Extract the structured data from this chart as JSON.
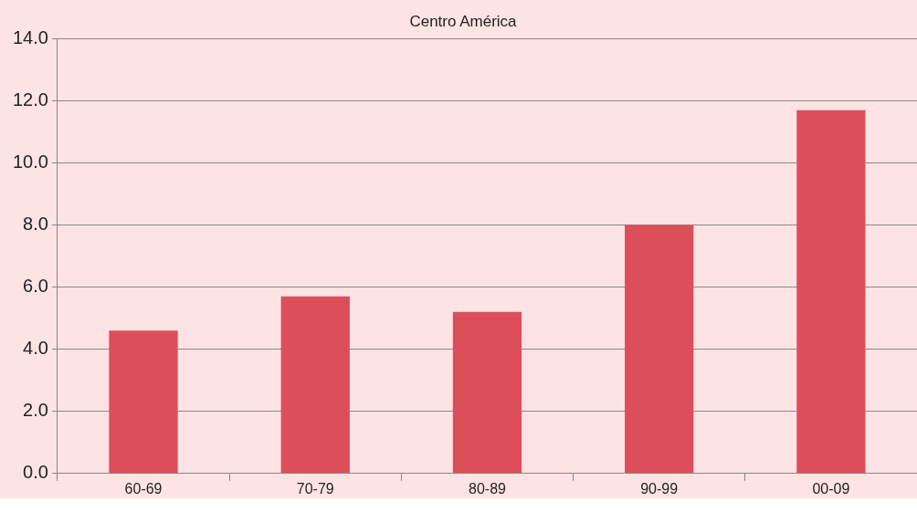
{
  "chart_data": {
    "type": "bar",
    "title": "Centro América",
    "categories": [
      "60-69",
      "70-79",
      "80-89",
      "90-99",
      "00-09"
    ],
    "values": [
      4.6,
      5.7,
      5.2,
      8.0,
      11.7
    ],
    "color": "#dc4f5a",
    "ylim": [
      0,
      14
    ],
    "yticks": [
      {
        "value": 0,
        "label": "0.0"
      },
      {
        "value": 2,
        "label": "2.0"
      },
      {
        "value": 4,
        "label": "4.0"
      },
      {
        "value": 6,
        "label": "6.0"
      },
      {
        "value": 8,
        "label": "8.0"
      },
      {
        "value": 10,
        "label": "10.0"
      },
      {
        "value": 12,
        "label": "12.0"
      },
      {
        "value": 14,
        "label": "14.0"
      }
    ],
    "grid": "y"
  }
}
